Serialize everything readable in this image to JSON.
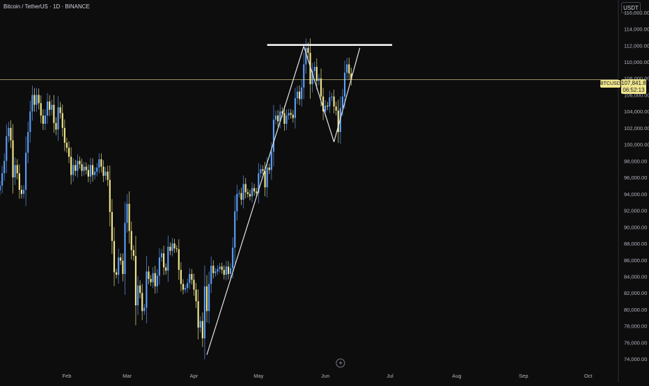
{
  "header": {
    "symbol_title": "Bitcoin / TetherUS · 1D · BINANCE"
  },
  "currency_label": "USDT",
  "last_price": {
    "symbol": "BTCUSDT",
    "price": "107,841.83",
    "countdown": "06:52:13",
    "value": 107841.83
  },
  "colors": {
    "background": "#0d0d0d",
    "up_candle": "#5b9cf6",
    "down_candle": "#f0e68c",
    "wick": "#9aa0aa",
    "price_line": "#f0e68c",
    "trendline": "#e6e6e6",
    "axis_text": "#b2b5be"
  },
  "chart_data": {
    "type": "candlestick",
    "title": "Bitcoin / TetherUS · 1D · BINANCE",
    "ylim": [
      73000,
      117500
    ],
    "y_ticks": [
      74000,
      76000,
      78000,
      80000,
      82000,
      84000,
      86000,
      88000,
      90000,
      92000,
      94000,
      96000,
      98000,
      100000,
      102000,
      104000,
      106000,
      108000,
      110000,
      112000,
      114000,
      116000
    ],
    "y_tick_labels": [
      "74,000.00",
      "76,000.00",
      "78,000.00",
      "80,000.00",
      "82,000.00",
      "84,000.00",
      "86,000.00",
      "88,000.00",
      "90,000.00",
      "92,000.00",
      "94,000.00",
      "96,000.00",
      "98,000.00",
      "100,000.00",
      "102,000.00",
      "104,000.00",
      "106,000.00",
      "108,000.00",
      "110,000.00",
      "112,000.00",
      "114,000.00",
      "116,000.00"
    ],
    "xlim": [
      "2025-01-01",
      "2025-10-15"
    ],
    "x_ticks": [
      "2025-02-01",
      "2025-03-01",
      "2025-04-01",
      "2025-05-01",
      "2025-06-01",
      "2025-07-01",
      "2025-08-01",
      "2025-09-01",
      "2025-10-01"
    ],
    "x_tick_labels": [
      "Feb",
      "Mar",
      "Apr",
      "May",
      "Jun",
      "Jul",
      "Aug",
      "Sep",
      "Oct"
    ],
    "closes_start_date": "2025-01-01",
    "closes": [
      95000,
      96500,
      98000,
      101000,
      102000,
      100500,
      96000,
      97500,
      96500,
      94500,
      94000,
      94500,
      99000,
      101500,
      104000,
      106000,
      104800,
      106000,
      105000,
      103500,
      102500,
      103500,
      105200,
      104200,
      104800,
      102600,
      101800,
      104500,
      103800,
      102000,
      100200,
      99600,
      98500,
      96300,
      97500,
      96800,
      98000,
      97600,
      96800,
      97300,
      96900,
      96100,
      97500,
      96300,
      96700,
      97200,
      98200,
      97300,
      96200,
      96700,
      95700,
      91800,
      88300,
      84500,
      84200,
      86300,
      85900,
      84300,
      90500,
      92800,
      89500,
      87200,
      86500,
      80500,
      82900,
      82000,
      79800,
      80200,
      84600,
      83700,
      83300,
      84400,
      82800,
      84100,
      86300,
      86800,
      85100,
      84700,
      87600,
      87100,
      88000,
      87400,
      87300,
      84800,
      83100,
      82400,
      82600,
      83200,
      84300,
      83600,
      82400,
      81000,
      77800,
      78600,
      76500,
      82800,
      79800,
      83100,
      85300,
      84400,
      84600,
      84900,
      85200,
      84800,
      84200,
      85200,
      84300,
      85000,
      87500,
      91900,
      94000,
      94100,
      93300,
      95200,
      94200,
      94000,
      93700,
      94700,
      94300,
      94100,
      96500,
      97000,
      96800,
      94800,
      97200,
      96900,
      99100,
      103000,
      103500,
      102800,
      104000,
      103800,
      102500,
      103500,
      103800,
      103600,
      103200,
      105600,
      106400,
      105500,
      106900,
      109700,
      111700,
      111100,
      107300,
      108900,
      109400,
      107700,
      108000,
      105800,
      104000,
      104700,
      104600,
      105700,
      105800,
      104600,
      104100,
      101500,
      104400,
      105800,
      108700,
      109700,
      108600,
      107841.83
    ],
    "trendlines": [
      {
        "from": [
          "2025-04-07",
          74500
        ],
        "to": [
          "2025-05-22",
          111900
        ]
      },
      {
        "from": [
          "2025-05-22",
          111900
        ],
        "to": [
          "2025-06-05",
          100300
        ]
      },
      {
        "from": [
          "2025-06-05",
          100300
        ],
        "to": [
          "2025-06-17",
          111700
        ]
      }
    ],
    "resistance": {
      "from": "2025-05-05",
      "to": "2025-07-02",
      "value": 112050
    },
    "last_price": 107841.83
  }
}
